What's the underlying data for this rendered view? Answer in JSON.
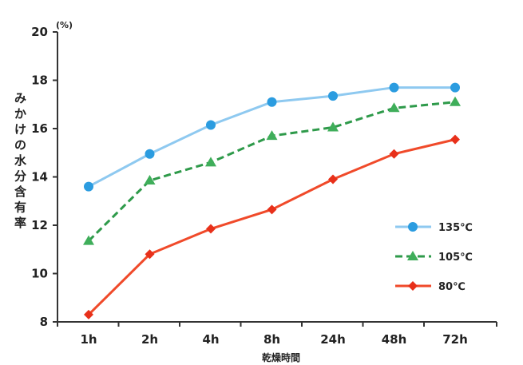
{
  "chart_data": {
    "type": "line",
    "categories": [
      "1h",
      "2h",
      "4h",
      "8h",
      "24h",
      "48h",
      "72h"
    ],
    "xlabel": "乾燥時間",
    "ylabel": "みかけの水分含有率",
    "yunit": "(%)",
    "ylim": [
      8,
      20
    ],
    "yticks": [
      8,
      10,
      12,
      14,
      16,
      18,
      20
    ],
    "grid": false,
    "legend": "lower-right",
    "series": [
      {
        "name": "135℃",
        "values": [
          13.6,
          14.95,
          16.15,
          17.1,
          17.35,
          17.7,
          17.7
        ],
        "color": "#8ec9f0",
        "marker": "circle",
        "marker_color": "#2b9ce0",
        "dash": false
      },
      {
        "name": "105℃",
        "values": [
          11.35,
          13.85,
          14.6,
          15.7,
          16.05,
          16.85,
          17.1
        ],
        "color": "#2e9a4a",
        "marker": "triangle",
        "marker_color": "#3fae5a",
        "dash": true
      },
      {
        "name": "80℃",
        "values": [
          8.3,
          10.8,
          11.85,
          12.65,
          13.9,
          14.95,
          15.55
        ],
        "color": "#f04a2a",
        "marker": "diamond",
        "marker_color": "#e8301a",
        "dash": false
      }
    ]
  }
}
